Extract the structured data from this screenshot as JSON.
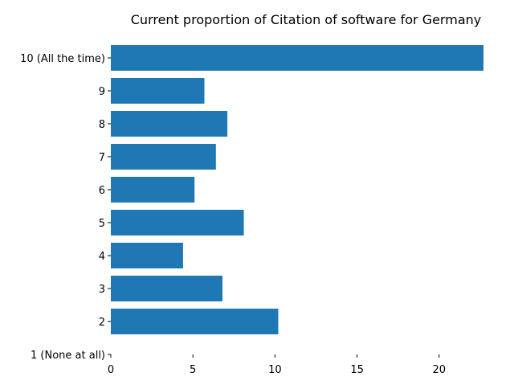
{
  "chart_data": {
    "type": "bar",
    "orientation": "horizontal",
    "title": "Current proportion of Citation of software for Germany",
    "xlabel": "",
    "ylabel": "",
    "categories": [
      "1 (None at all)",
      "2",
      "3",
      "4",
      "5",
      "6",
      "7",
      "8",
      "9",
      "10 (All the time)"
    ],
    "values": [
      0,
      10.2,
      6.8,
      4.4,
      8.1,
      5.1,
      6.4,
      7.1,
      5.7,
      22.7
    ],
    "xlim": [
      0,
      22.7
    ],
    "xticks": [
      0,
      5,
      10,
      15,
      20
    ],
    "grid": false,
    "bar_color": "#1f77b4"
  }
}
